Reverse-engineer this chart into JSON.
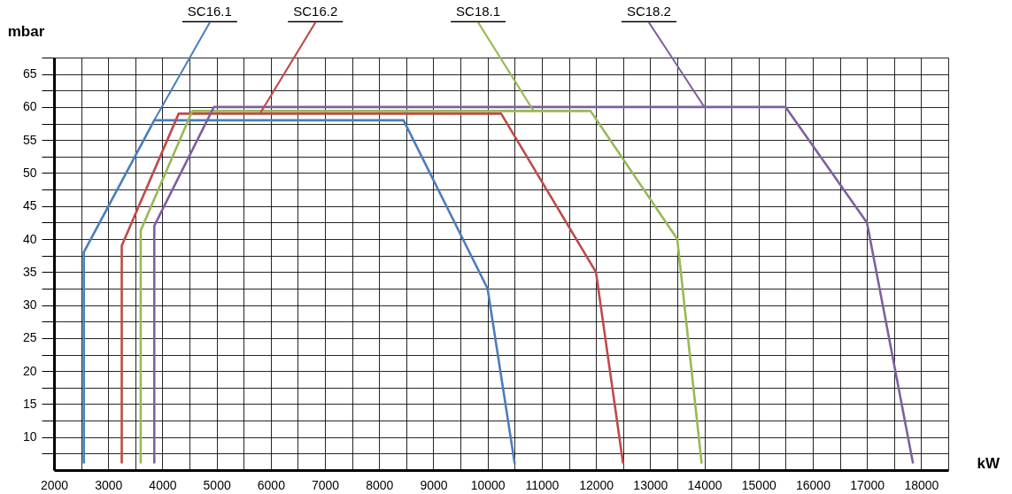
{
  "chart_data": {
    "type": "line",
    "xlabel": "kW",
    "ylabel": "mbar",
    "xlim": [
      2000,
      18500
    ],
    "ylim": [
      5,
      67.5
    ],
    "xticks": [
      2000,
      {
        "value": 2500,
        "label": null
      },
      3000,
      {
        "value": 3500,
        "label": null
      },
      4000,
      {
        "value": 4500,
        "label": null
      },
      5000,
      {
        "value": 5500,
        "label": null
      },
      6000,
      {
        "value": 6500,
        "label": null
      },
      7000,
      {
        "value": 7500,
        "label": null
      },
      8000,
      {
        "value": 8500,
        "label": null
      },
      9000,
      {
        "value": 9500,
        "label": null
      },
      10000,
      {
        "value": 10500,
        "label": null
      },
      11000,
      {
        "value": 11500,
        "label": null
      },
      12000,
      {
        "value": 12500,
        "label": null
      },
      13000,
      {
        "value": 13500,
        "label": null
      },
      14000,
      {
        "value": 14500,
        "label": null
      },
      15000,
      {
        "value": 15500,
        "label": null
      },
      16000,
      {
        "value": 16500,
        "label": null
      },
      17000,
      {
        "value": 17500,
        "label": null
      },
      18000,
      {
        "value": 18500,
        "label": null
      }
    ],
    "yticks": [
      {
        "value": 7.5,
        "label": null
      },
      10,
      {
        "value": 12.5,
        "label": null
      },
      15,
      {
        "value": 17.5,
        "label": null
      },
      20,
      {
        "value": 22.5,
        "label": null
      },
      25,
      {
        "value": 27.5,
        "label": null
      },
      30,
      {
        "value": 32.5,
        "label": null
      },
      35,
      {
        "value": 37.5,
        "label": null
      },
      40,
      {
        "value": 42.5,
        "label": null
      },
      45,
      {
        "value": 47.5,
        "label": null
      },
      50,
      {
        "value": 52.5,
        "label": null
      },
      55,
      {
        "value": 57.5,
        "label": null
      },
      60,
      {
        "value": 62.5,
        "label": null
      },
      65,
      {
        "value": 67.5,
        "label": null
      }
    ],
    "grid": true,
    "legend": false,
    "marker": "none",
    "line_style": "solid",
    "series": [
      {
        "color": "#4a7ebb",
        "x": [
          2550,
          2550,
          3850,
          8450,
          10000,
          10500
        ],
        "values": [
          6,
          38,
          58,
          58,
          32.5,
          6
        ]
      },
      {
        "color": "#be4b48",
        "x": [
          3250,
          3250,
          4300,
          10250,
          12000,
          12500
        ],
        "values": [
          6,
          39,
          59,
          59,
          35,
          6
        ]
      },
      {
        "color": "#98b954",
        "x": [
          3600,
          3600,
          4550,
          11900,
          13500,
          13950
        ],
        "values": [
          6,
          41.3,
          59.4,
          59.4,
          40,
          6
        ]
      },
      {
        "color": "#7d60a0",
        "x": [
          3850,
          3850,
          4950,
          15500,
          17000,
          17850
        ],
        "values": [
          6,
          42,
          60,
          60,
          42.5,
          6
        ]
      }
    ],
    "annotations": [
      {
        "text": "SC16.1",
        "x": 3850,
        "y": 58
      },
      {
        "text": "SC16.2",
        "x": 5800,
        "y": 59
      },
      {
        "text": "SC18.1",
        "x": 10850,
        "y": 59.4
      },
      {
        "text": "SC18.2",
        "x": 14000,
        "y": 60
      }
    ]
  }
}
